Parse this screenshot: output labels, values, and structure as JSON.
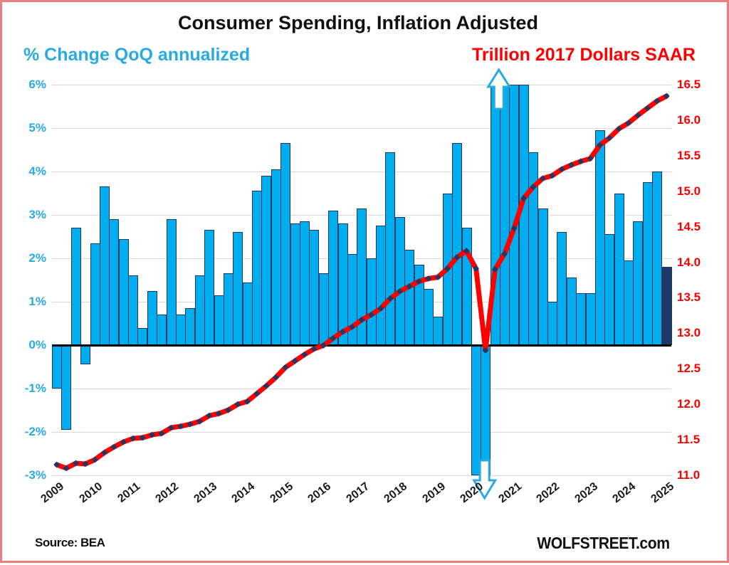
{
  "header": {
    "title": "Consumer Spending, Inflation Adjusted",
    "left_axis_title": "% Change QoQ annualized",
    "right_axis_title": "Trillion 2017 Dollars SAAR",
    "left_color": "#29abe2",
    "right_color": "#ff0000"
  },
  "footer": {
    "source": "Source: BEA",
    "watermark": "WOLFSTREET.com"
  },
  "chart_data": {
    "type": "bar+line",
    "title": "Consumer Spending, Inflation Adjusted",
    "frequency": "quarterly",
    "start_period": "2009 Q1",
    "end_period": "2025 Q1",
    "year_labels": [
      "2009",
      "2010",
      "2011",
      "2012",
      "2013",
      "2014",
      "2015",
      "2016",
      "2017",
      "2018",
      "2019",
      "2020",
      "2021",
      "2022",
      "2023",
      "2024",
      "2025"
    ],
    "left_axis": {
      "label": "% Change QoQ annualized",
      "ticks": [
        "6%",
        "5%",
        "4%",
        "3%",
        "2%",
        "1%",
        "0%",
        "-1%",
        "-2%",
        "-3%"
      ],
      "min": -3,
      "max": 6,
      "tick_color": "#29abe2",
      "gridline_color": "#d9d9d9",
      "grid": true
    },
    "right_axis": {
      "label": "Trillion 2017 Dollars SAAR",
      "ticks": [
        "16.5",
        "16.0",
        "15.5",
        "15.0",
        "14.5",
        "14.0",
        "13.5",
        "13.0",
        "12.5",
        "12.0",
        "11.5",
        "11.0"
      ],
      "min": 11.0,
      "max": 16.5,
      "tick_color": "#ff0000"
    },
    "bar_series": {
      "name": "% Change QoQ annualized",
      "axis": "left",
      "fill": "#00aeef",
      "border": "#1f3864",
      "last_bar_fill": "#1f3864",
      "values": [
        -1.0,
        -1.95,
        2.7,
        -0.45,
        2.35,
        3.65,
        2.9,
        2.45,
        1.6,
        0.4,
        1.25,
        0.7,
        2.9,
        0.7,
        0.85,
        1.6,
        2.65,
        1.15,
        1.65,
        2.6,
        1.45,
        3.55,
        3.9,
        4.05,
        4.65,
        2.8,
        2.85,
        2.65,
        1.65,
        3.1,
        2.8,
        2.1,
        3.15,
        2.0,
        2.75,
        4.45,
        2.95,
        2.2,
        1.85,
        1.3,
        0.65,
        3.5,
        4.65,
        2.7,
        -6.9,
        -30.0,
        41.7,
        6.4,
        10.8,
        12.1,
        4.45,
        3.15,
        1.0,
        2.6,
        1.55,
        1.2,
        1.2,
        4.95,
        2.55,
        3.5,
        1.95,
        2.85,
        3.75,
        4.0,
        1.8
      ]
    },
    "line_series": {
      "name": "Trillion 2017 Dollars SAAR",
      "axis": "right",
      "color": "#ff0000",
      "marker": "diamond",
      "marker_color": "#1f3864",
      "values": [
        11.15,
        11.1,
        11.17,
        11.16,
        11.22,
        11.32,
        11.4,
        11.47,
        11.52,
        11.53,
        11.57,
        11.59,
        11.67,
        11.69,
        11.72,
        11.76,
        11.84,
        11.87,
        11.92,
        12.0,
        12.04,
        12.15,
        12.26,
        12.38,
        12.52,
        12.61,
        12.7,
        12.78,
        12.83,
        12.93,
        13.02,
        13.09,
        13.19,
        13.26,
        13.35,
        13.49,
        13.59,
        13.66,
        13.73,
        13.77,
        13.79,
        13.91,
        14.07,
        14.16,
        13.91,
        12.76,
        13.9,
        14.12,
        14.48,
        14.9,
        15.06,
        15.18,
        15.22,
        15.31,
        15.37,
        15.42,
        15.46,
        15.65,
        15.75,
        15.88,
        15.96,
        16.07,
        16.17,
        16.27,
        16.34
      ]
    },
    "annotations": {
      "up_arrow": {
        "direction": "up",
        "at_period": "2020 Q3",
        "fill": "#ffffff",
        "stroke": "#29abe2",
        "meaning": "bar clipped above 6%"
      },
      "down_arrow": {
        "direction": "down",
        "at_period": "2020 Q2",
        "fill": "#ffffff",
        "stroke": "#29abe2",
        "meaning": "bar clipped below -3%"
      }
    }
  }
}
